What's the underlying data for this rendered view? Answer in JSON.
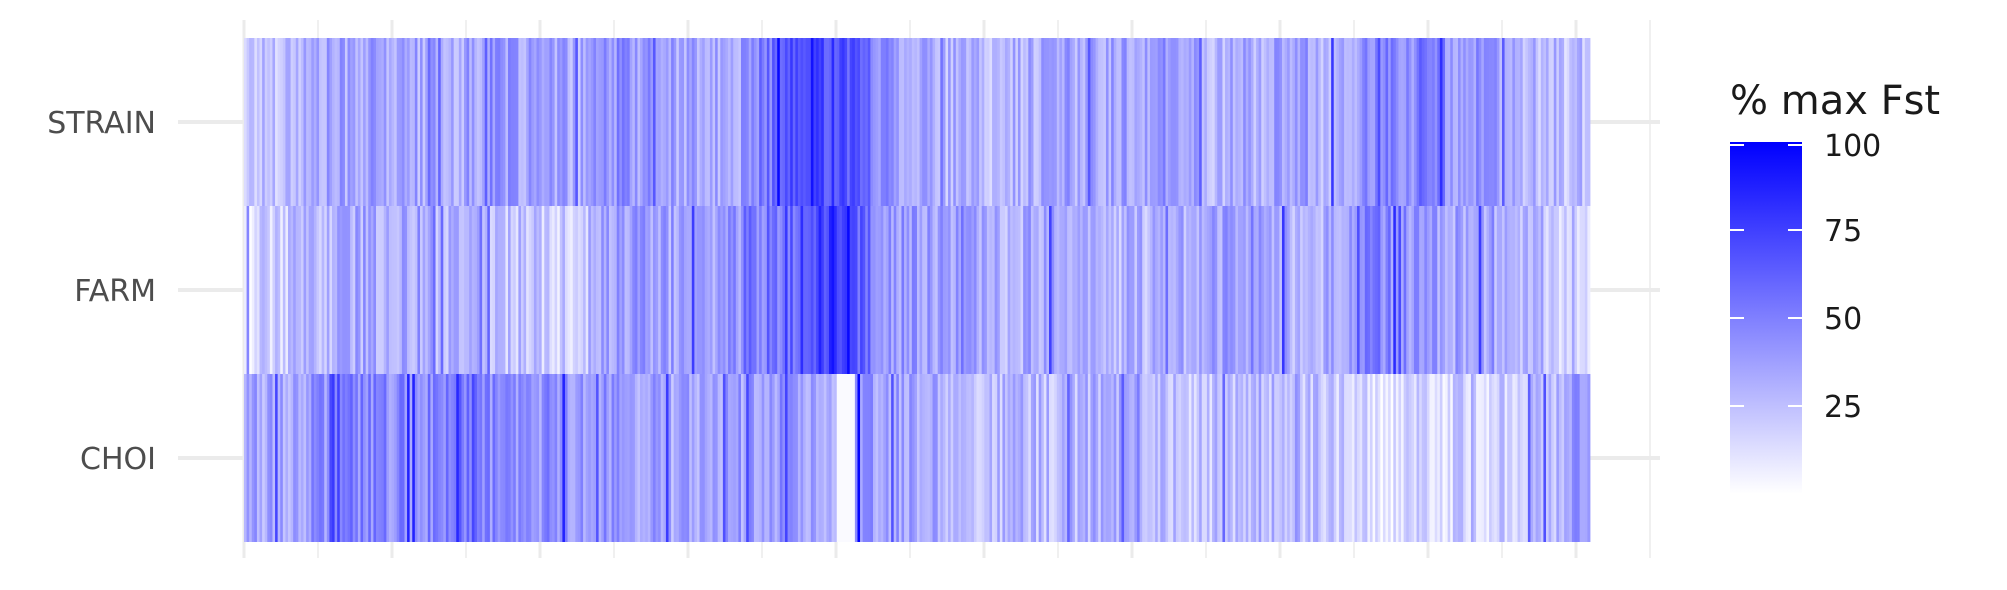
{
  "chart_data": {
    "type": "heatmap",
    "title": "",
    "xlabel": "",
    "ylabel": "",
    "rows": [
      "STRAIN",
      "FARM",
      "CHOI"
    ],
    "n_columns": 520,
    "value_range": [
      0,
      100
    ],
    "grid": true,
    "legend": {
      "title": "% max Fst",
      "ticks": [
        25,
        50,
        75,
        100
      ],
      "placement": "right",
      "low_color": "#ffffff",
      "high_color": "#0000ff"
    },
    "row_profiles": {
      "STRAIN": {
        "segment_means": [
          22,
          30,
          36,
          32,
          34,
          38,
          31,
          42,
          36,
          30,
          62,
          74,
          42,
          30,
          26,
          36,
          34,
          40,
          30,
          34,
          30,
          44,
          48,
          38,
          26,
          24
        ],
        "notes": "highest values concentrated in the center-left block"
      },
      "FARM": {
        "segment_means": [
          14,
          24,
          34,
          32,
          30,
          24,
          18,
          38,
          36,
          40,
          56,
          80,
          40,
          36,
          30,
          34,
          28,
          30,
          36,
          38,
          26,
          50,
          38,
          34,
          28,
          8
        ],
        "notes": "peak near column ~230 of 520"
      },
      "CHOI": {
        "segment_means": [
          34,
          38,
          48,
          44,
          52,
          40,
          44,
          40,
          34,
          36,
          42,
          36,
          38,
          30,
          28,
          26,
          32,
          24,
          22,
          28,
          24,
          12,
          14,
          18,
          20,
          44
        ],
        "notes": "gap of near-zero values around column ~233 of 520, dark line at ~237; dark streaks at right end"
      }
    }
  }
}
